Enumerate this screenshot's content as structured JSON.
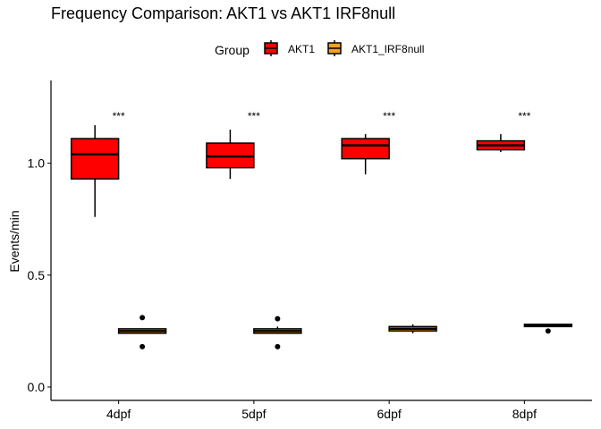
{
  "chart_data": {
    "type": "boxplot",
    "title": "Frequency Comparison: AKT1 vs AKT1 IRF8null",
    "xlabel": "",
    "ylabel": "Events/min",
    "ylim": [
      -0.06,
      1.37
    ],
    "yticks": [
      0.0,
      0.5,
      1.0
    ],
    "ytick_labels": [
      "0.0",
      "0.5",
      "1.0"
    ],
    "categories": [
      "4dpf",
      "5dpf",
      "6dpf",
      "8dpf"
    ],
    "legend": {
      "title": "Group",
      "position": "top",
      "entries": [
        "AKT1",
        "AKT1_IRF8null"
      ]
    },
    "series": [
      {
        "name": "AKT1",
        "color": "#ff0000",
        "boxes": [
          {
            "whisker_low": 0.76,
            "q1": 0.93,
            "median": 1.04,
            "q3": 1.11,
            "whisker_high": 1.17,
            "outliers": []
          },
          {
            "whisker_low": 0.93,
            "q1": 0.98,
            "median": 1.03,
            "q3": 1.09,
            "whisker_high": 1.15,
            "outliers": []
          },
          {
            "whisker_low": 0.95,
            "q1": 1.02,
            "median": 1.08,
            "q3": 1.11,
            "whisker_high": 1.13,
            "outliers": []
          },
          {
            "whisker_low": 1.05,
            "q1": 1.06,
            "median": 1.08,
            "q3": 1.1,
            "whisker_high": 1.13,
            "outliers": []
          }
        ]
      },
      {
        "name": "AKT1_IRF8null",
        "color": "#f5a21b",
        "boxes": [
          {
            "whisker_low": 0.24,
            "q1": 0.24,
            "median": 0.25,
            "q3": 0.26,
            "whisker_high": 0.26,
            "outliers": [
              0.31,
              0.18
            ]
          },
          {
            "whisker_low": 0.24,
            "q1": 0.24,
            "median": 0.25,
            "q3": 0.26,
            "whisker_high": 0.27,
            "outliers": [
              0.305,
              0.18
            ]
          },
          {
            "whisker_low": 0.24,
            "q1": 0.25,
            "median": 0.26,
            "q3": 0.27,
            "whisker_high": 0.28,
            "outliers": []
          },
          {
            "whisker_low": 0.27,
            "q1": 0.27,
            "median": 0.275,
            "q3": 0.28,
            "whisker_high": 0.28,
            "outliers": [
              0.25
            ]
          }
        ]
      }
    ],
    "annotations": [
      {
        "category": "4dpf",
        "text": "***",
        "y": 1.21
      },
      {
        "category": "5dpf",
        "text": "***",
        "y": 1.21
      },
      {
        "category": "6dpf",
        "text": "***",
        "y": 1.21
      },
      {
        "category": "8dpf",
        "text": "***",
        "y": 1.21
      }
    ]
  }
}
